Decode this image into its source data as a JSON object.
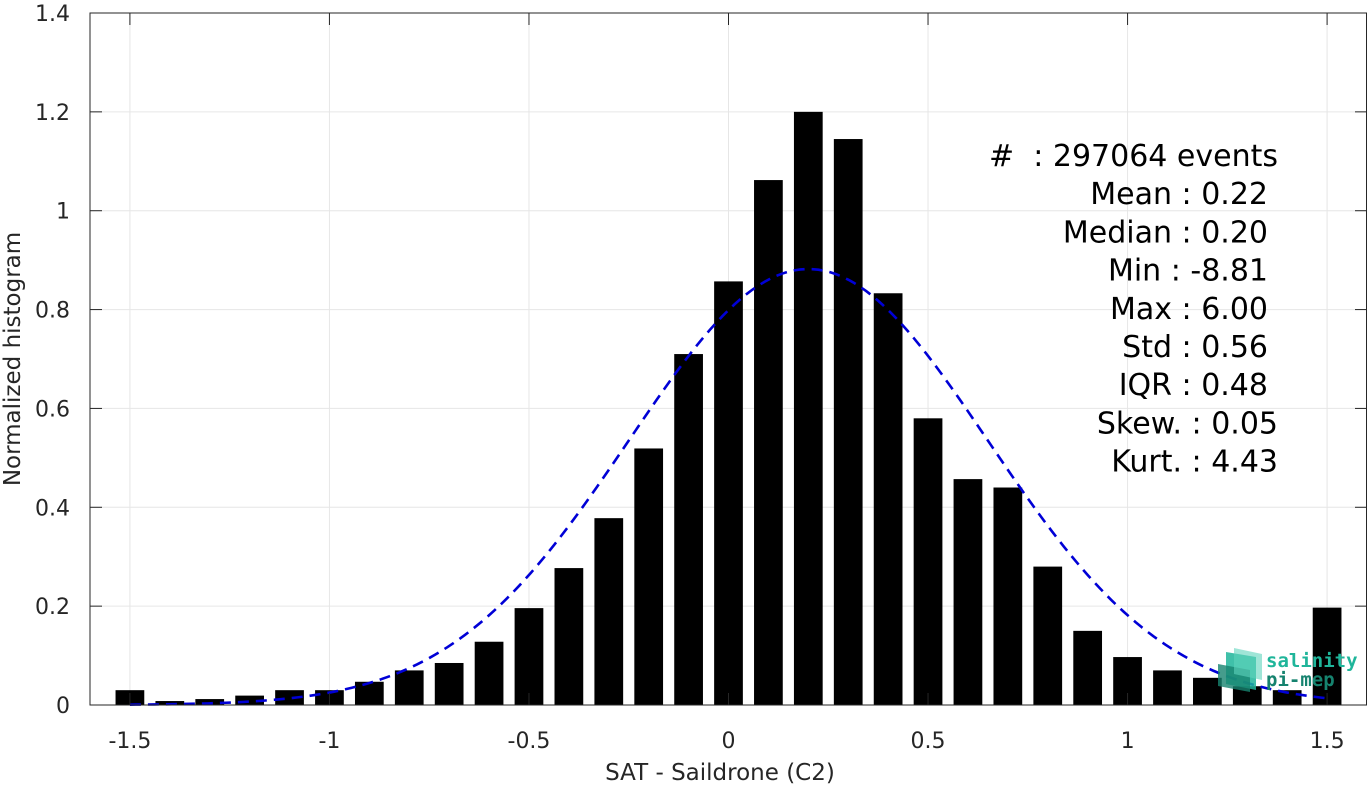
{
  "chart_data": {
    "type": "bar",
    "xlabel": "SAT - Saildrone (C2)",
    "ylabel": "Normalized histogram",
    "xlim": [
      -1.6,
      1.6
    ],
    "ylim": [
      0,
      1.4
    ],
    "x_ticks": [
      -1.5,
      -1,
      -0.5,
      0,
      0.5,
      1,
      1.5
    ],
    "x_tick_labels": [
      "-1.5",
      "-1",
      "-0.5",
      "0",
      "0.5",
      "1",
      "1.5"
    ],
    "y_ticks": [
      0,
      0.2,
      0.4,
      0.6,
      0.8,
      1,
      1.2,
      1.4
    ],
    "y_tick_labels": [
      "0",
      "0.2",
      "0.4",
      "0.6",
      "0.8",
      "1",
      "1.2",
      "1.4"
    ],
    "grid": true,
    "bin_width": 0.1,
    "x": [
      -1.5,
      -1.4,
      -1.3,
      -1.2,
      -1.1,
      -1.0,
      -0.9,
      -0.8,
      -0.7,
      -0.6,
      -0.5,
      -0.4,
      -0.3,
      -0.2,
      -0.1,
      0.0,
      0.1,
      0.2,
      0.3,
      0.4,
      0.5,
      0.6,
      0.7,
      0.8,
      0.9,
      1.0,
      1.1,
      1.2,
      1.3,
      1.4,
      1.5
    ],
    "values": [
      0.03,
      0.008,
      0.012,
      0.019,
      0.03,
      0.03,
      0.047,
      0.07,
      0.085,
      0.128,
      0.196,
      0.277,
      0.378,
      0.519,
      0.71,
      0.857,
      1.062,
      1.2,
      1.145,
      0.833,
      0.58,
      0.457,
      0.44,
      0.28,
      0.15,
      0.097,
      0.07,
      0.055,
      0.038,
      0.03,
      0.197
    ],
    "bar_color": "#000000",
    "fit": {
      "type": "gaussian",
      "mean": 0.2,
      "std": 0.45,
      "peak": 0.882,
      "x_range": [
        -1.5,
        1.5
      ],
      "color": "#0000d6",
      "style": "dashed"
    },
    "stats_lines": [
      "#  : 297064 events",
      "Mean : 0.22",
      "Median : 0.20",
      "Min : -8.81",
      "Max : 6.00",
      "Std : 0.56",
      "IQR : 0.48",
      "Skew. : 0.05",
      "Kurt. : 4.43"
    ],
    "stats_placement": "top-right"
  },
  "logo": {
    "line1": "salinity",
    "line2": "pi-mep",
    "color1": "#1fb59a",
    "color2": "#16836f"
  }
}
